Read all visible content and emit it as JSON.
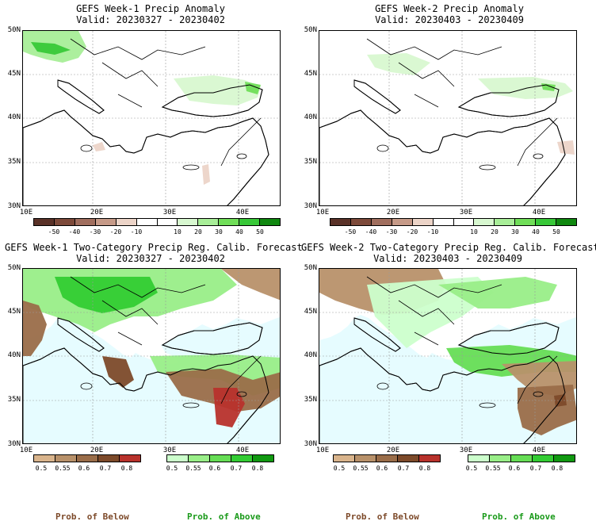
{
  "colors": {
    "sea_light_blue": "#e6fcff",
    "outside_grey": "#e8e8e8",
    "above_scale": [
      "#ccffcc",
      "#99ee88",
      "#66dd55",
      "#33cc33",
      "#119911"
    ],
    "below_scale": [
      "#d9b48c",
      "#b8916a",
      "#9a6d49",
      "#7d4a2a",
      "#b8322c"
    ],
    "anom_scale": [
      "#5a3228",
      "#7d4a3a",
      "#a06e5e",
      "#c69a88",
      "#ecd4c8",
      "#ffffff",
      "#ffffff",
      "#d8f8d0",
      "#a8ee98",
      "#70de58",
      "#38c838",
      "#108810"
    ]
  },
  "panels": {
    "p1": {
      "title_line1": "GEFS Week-1 Precip Anomaly",
      "title_line2": "Valid: 20230327 - 20230402"
    },
    "p2": {
      "title_line1": "GEFS Week-2 Precip Anomaly",
      "title_line2": "Valid: 20230403 - 20230409"
    },
    "p3": {
      "title_line1": "GEFS Week-1 Two-Category Precip Reg. Calib. Forecast",
      "title_line2": "Valid: 20230327 - 20230402"
    },
    "p4": {
      "title_line1": "GEFS Week-2 Two-Category Precip Reg. Calib. Forecast",
      "title_line2": "Valid: 20230403 - 20230409"
    }
  },
  "axes": {
    "lat_labels": [
      "50N",
      "45N",
      "40N",
      "35N",
      "30N"
    ],
    "lon_labels": [
      "10E",
      "20E",
      "30E",
      "40E"
    ]
  },
  "anom_colorbar": {
    "labels": [
      "-50",
      "-40",
      "-30",
      "-20",
      "-10",
      "10",
      "20",
      "30",
      "40",
      "50"
    ]
  },
  "prob_colorbar": {
    "labels": [
      "0.5",
      "0.55",
      "0.6",
      "0.7",
      "0.8"
    ]
  },
  "legend": {
    "below": "Prob. of Below",
    "above": "Prob. of Above"
  }
}
